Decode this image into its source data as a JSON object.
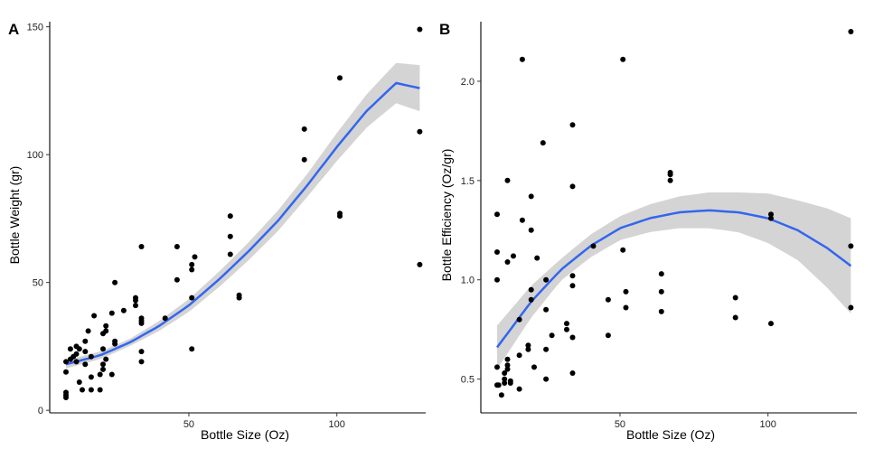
{
  "chart_data": [
    {
      "type": "scatter",
      "panel_tag": "A",
      "xlabel": "Bottle Size (Oz)",
      "ylabel": "Bottle Weight (gr)",
      "xlim": [
        3,
        130
      ],
      "ylim": [
        -1,
        152
      ],
      "xticks": [
        50,
        100
      ],
      "yticks": [
        0,
        50,
        100,
        150
      ],
      "grid": false,
      "point_color": "#000000",
      "fit_color": "#3366ee",
      "band_color": "#d4d4d4",
      "points": [
        [
          8.5,
          7
        ],
        [
          8.5,
          5
        ],
        [
          8.5,
          6
        ],
        [
          8.5,
          15
        ],
        [
          8.5,
          19
        ],
        [
          10,
          20
        ],
        [
          10,
          24
        ],
        [
          11,
          21
        ],
        [
          12,
          22
        ],
        [
          12,
          19
        ],
        [
          12,
          25
        ],
        [
          13,
          24
        ],
        [
          13,
          11
        ],
        [
          14,
          8
        ],
        [
          15,
          18
        ],
        [
          15,
          23
        ],
        [
          15,
          27
        ],
        [
          16,
          31
        ],
        [
          17,
          21
        ],
        [
          17,
          13
        ],
        [
          17,
          8
        ],
        [
          18,
          37
        ],
        [
          20,
          8
        ],
        [
          20,
          14
        ],
        [
          21,
          30
        ],
        [
          21,
          18
        ],
        [
          21,
          16
        ],
        [
          21,
          24
        ],
        [
          22,
          20
        ],
        [
          22,
          31
        ],
        [
          22,
          33
        ],
        [
          24,
          38
        ],
        [
          24,
          14
        ],
        [
          25,
          26
        ],
        [
          25,
          50
        ],
        [
          25,
          27
        ],
        [
          28,
          39
        ],
        [
          32,
          41
        ],
        [
          32,
          43
        ],
        [
          32,
          44
        ],
        [
          34,
          35
        ],
        [
          34,
          36
        ],
        [
          34,
          34
        ],
        [
          34,
          23
        ],
        [
          34,
          19
        ],
        [
          34,
          64
        ],
        [
          42,
          36
        ],
        [
          46,
          64
        ],
        [
          46,
          51
        ],
        [
          51,
          55
        ],
        [
          51,
          24
        ],
        [
          51,
          44
        ],
        [
          51,
          57
        ],
        [
          52,
          60
        ],
        [
          64,
          61
        ],
        [
          64,
          68
        ],
        [
          64,
          76
        ],
        [
          67,
          45
        ],
        [
          67,
          44
        ],
        [
          89,
          98
        ],
        [
          89,
          110
        ],
        [
          101,
          77
        ],
        [
          101,
          76
        ],
        [
          101,
          130
        ],
        [
          128,
          149
        ],
        [
          128,
          109
        ],
        [
          128,
          57
        ]
      ],
      "fit": [
        [
          8.5,
          18
        ],
        [
          20,
          21.5
        ],
        [
          30,
          26.5
        ],
        [
          40,
          33
        ],
        [
          50,
          41
        ],
        [
          60,
          51
        ],
        [
          70,
          62
        ],
        [
          80,
          74
        ],
        [
          90,
          88
        ],
        [
          100,
          103
        ],
        [
          110,
          117
        ],
        [
          120,
          128
        ],
        [
          128,
          126
        ]
      ],
      "band_halfwidth": [
        [
          8.5,
          1.6
        ],
        [
          30,
          1.4
        ],
        [
          50,
          2.5
        ],
        [
          70,
          3.5
        ],
        [
          90,
          4.5
        ],
        [
          110,
          6.5
        ],
        [
          128,
          9
        ]
      ]
    },
    {
      "type": "scatter",
      "panel_tag": "B",
      "xlabel": "Bottle Size (Oz)",
      "ylabel": "Bottle Efficiency (Oz/gr)",
      "xlim": [
        3,
        130
      ],
      "ylim": [
        0.33,
        2.3
      ],
      "xticks": [
        50,
        100
      ],
      "yticks": [
        0.5,
        1.0,
        1.5,
        2.0
      ],
      "ytick_labels": [
        "0.5",
        "1.0",
        "1.5",
        "2.0"
      ],
      "grid": false,
      "point_color": "#000000",
      "fit_color": "#3366ee",
      "band_color": "#d4d4d4",
      "points": [
        [
          8.5,
          1.33
        ],
        [
          8.5,
          1.14
        ],
        [
          8.5,
          1.0
        ],
        [
          8.5,
          0.56
        ],
        [
          8.5,
          0.47
        ],
        [
          9,
          0.47
        ],
        [
          10,
          0.42
        ],
        [
          11,
          0.48
        ],
        [
          11,
          0.5
        ],
        [
          11,
          0.53
        ],
        [
          12,
          0.55
        ],
        [
          12,
          0.57
        ],
        [
          12,
          0.6
        ],
        [
          12,
          1.5
        ],
        [
          12,
          1.09
        ],
        [
          13,
          0.49
        ],
        [
          13,
          0.48
        ],
        [
          14,
          1.12
        ],
        [
          16,
          0.45
        ],
        [
          16,
          0.62
        ],
        [
          16,
          0.8
        ],
        [
          17,
          2.11
        ],
        [
          17,
          1.3
        ],
        [
          19,
          0.67
        ],
        [
          19,
          0.65
        ],
        [
          20,
          1.25
        ],
        [
          20,
          1.42
        ],
        [
          20,
          0.95
        ],
        [
          20,
          0.9
        ],
        [
          21,
          0.56
        ],
        [
          22,
          1.11
        ],
        [
          24,
          1.69
        ],
        [
          25,
          0.85
        ],
        [
          25,
          0.65
        ],
        [
          25,
          1.0
        ],
        [
          25,
          0.5
        ],
        [
          27,
          0.72
        ],
        [
          32,
          0.75
        ],
        [
          32,
          0.78
        ],
        [
          34,
          1.78
        ],
        [
          34,
          1.47
        ],
        [
          34,
          1.02
        ],
        [
          34,
          0.97
        ],
        [
          34,
          0.53
        ],
        [
          34,
          0.71
        ],
        [
          41,
          1.17
        ],
        [
          46,
          0.72
        ],
        [
          46,
          0.9
        ],
        [
          51,
          2.11
        ],
        [
          51,
          1.15
        ],
        [
          52,
          0.94
        ],
        [
          52,
          0.86
        ],
        [
          64,
          1.03
        ],
        [
          64,
          0.94
        ],
        [
          64,
          0.84
        ],
        [
          67,
          1.54
        ],
        [
          67,
          1.53
        ],
        [
          67,
          1.5
        ],
        [
          89,
          0.91
        ],
        [
          89,
          0.81
        ],
        [
          101,
          1.33
        ],
        [
          101,
          1.31
        ],
        [
          101,
          0.78
        ],
        [
          128,
          2.25
        ],
        [
          128,
          1.17
        ],
        [
          128,
          0.86
        ]
      ],
      "fit": [
        [
          8.5,
          0.66
        ],
        [
          20,
          0.89
        ],
        [
          30,
          1.05
        ],
        [
          40,
          1.17
        ],
        [
          50,
          1.26
        ],
        [
          60,
          1.31
        ],
        [
          70,
          1.34
        ],
        [
          80,
          1.35
        ],
        [
          90,
          1.34
        ],
        [
          100,
          1.31
        ],
        [
          110,
          1.25
        ],
        [
          120,
          1.16
        ],
        [
          128,
          1.07
        ]
      ],
      "band_halfwidth": [
        [
          8.5,
          0.11
        ],
        [
          30,
          0.055
        ],
        [
          50,
          0.06
        ],
        [
          70,
          0.08
        ],
        [
          90,
          0.1
        ],
        [
          110,
          0.15
        ],
        [
          128,
          0.24
        ]
      ]
    }
  ]
}
